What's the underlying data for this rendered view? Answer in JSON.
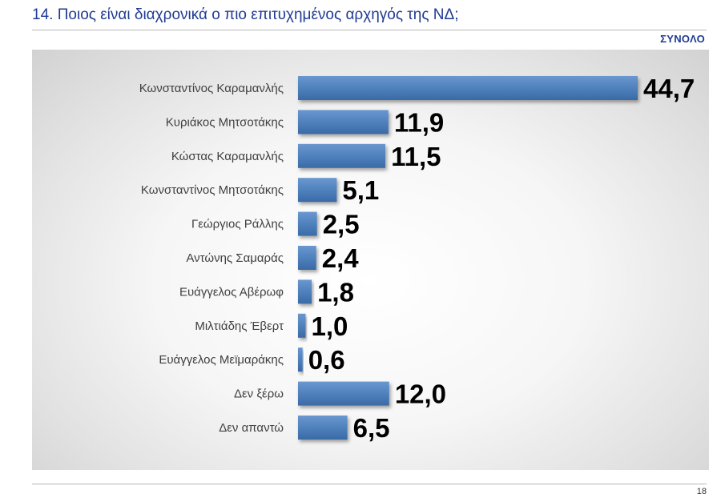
{
  "header": {
    "title": "14. Ποιος είναι διαχρονικά ο πιο επιτυχημένος αρχηγός της ΝΔ;",
    "subtitle": "ΣΥΝΟΛΟ"
  },
  "footer": {
    "page_number": "18"
  },
  "colors": {
    "bar": "#4f81bd",
    "bar_dark": "#3a6aa6",
    "title": "#1f3a93",
    "label": "#404040",
    "value": "#000000"
  },
  "chart_data": {
    "type": "bar",
    "orientation": "horizontal",
    "categories": [
      "Κωνσταντίνος Καραμανλής",
      "Κυριάκος Μητσοτάκης",
      "Κώστας Καραμανλής",
      "Κωνσταντίνος Μητσοτάκης",
      "Γεώργιος Ράλλης",
      "Αντώνης Σαμαράς",
      "Ευάγγελος Αβέρωφ",
      "Μιλτιάδης Έβερτ",
      "Ευάγγελος Μεϊμαράκης",
      "Δεν ξέρω",
      "Δεν απαντώ"
    ],
    "values": [
      44.7,
      11.9,
      11.5,
      5.1,
      2.5,
      2.4,
      1.8,
      1.0,
      0.6,
      12.0,
      6.5
    ],
    "value_labels": [
      "44,7",
      "11,9",
      "11,5",
      "5,1",
      "2,5",
      "2,4",
      "1,8",
      "1,0",
      "0,6",
      "12,0",
      "6,5"
    ],
    "title": "",
    "xlabel": "",
    "ylabel": "",
    "xlim": [
      0,
      44.7
    ],
    "grid": false,
    "legend": "none"
  }
}
